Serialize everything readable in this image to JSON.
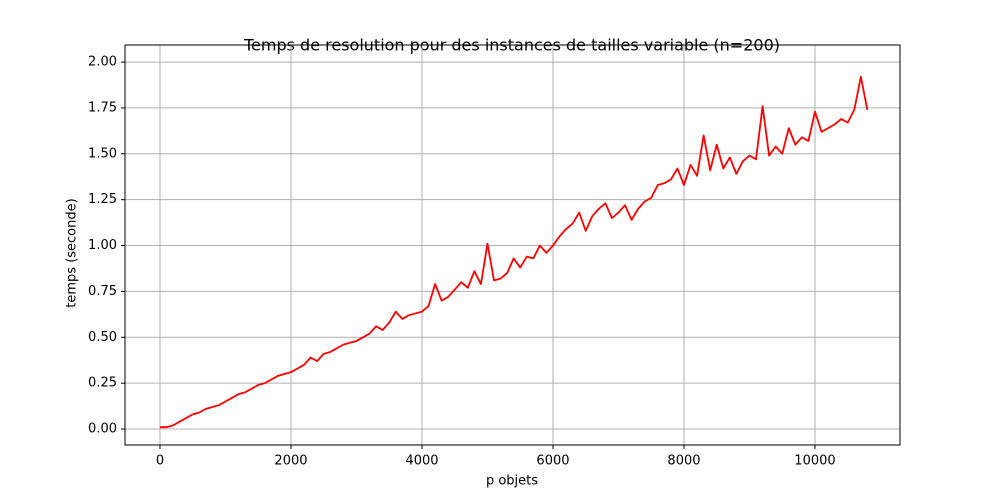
{
  "chart_data": {
    "type": "line",
    "title": "Temps de resolution pour des instances de tailles variable (n=200)",
    "xlabel": "p objets",
    "ylabel": "temps (seconde)",
    "x": [
      0,
      100,
      200,
      300,
      400,
      500,
      600,
      700,
      800,
      900,
      1000,
      1100,
      1200,
      1300,
      1400,
      1500,
      1600,
      1700,
      1800,
      1900,
      2000,
      2100,
      2200,
      2300,
      2400,
      2500,
      2600,
      2700,
      2800,
      2900,
      3000,
      3100,
      3200,
      3300,
      3400,
      3500,
      3600,
      3700,
      3800,
      3900,
      4000,
      4100,
      4200,
      4300,
      4400,
      4500,
      4600,
      4700,
      4800,
      4900,
      5000,
      5100,
      5200,
      5300,
      5400,
      5500,
      5600,
      5700,
      5800,
      5900,
      6000,
      6100,
      6200,
      6300,
      6400,
      6500,
      6600,
      6700,
      6800,
      6900,
      7000,
      7100,
      7200,
      7300,
      7400,
      7500,
      7600,
      7700,
      7800,
      7900,
      8000,
      8100,
      8200,
      8300,
      8400,
      8500,
      8600,
      8700,
      8800,
      8900,
      9000,
      9100,
      9200,
      9300,
      9400,
      9500,
      9600,
      9700,
      9800,
      9900,
      10000,
      10100,
      10200,
      10300,
      10400,
      10500,
      10600,
      10700,
      10800
    ],
    "series": [
      {
        "name": "temps",
        "color": "#ff0000",
        "values": [
          0.01,
          0.01,
          0.02,
          0.04,
          0.06,
          0.08,
          0.09,
          0.11,
          0.12,
          0.13,
          0.15,
          0.17,
          0.19,
          0.2,
          0.22,
          0.24,
          0.25,
          0.27,
          0.29,
          0.3,
          0.31,
          0.33,
          0.35,
          0.39,
          0.37,
          0.41,
          0.42,
          0.44,
          0.46,
          0.47,
          0.48,
          0.5,
          0.52,
          0.56,
          0.54,
          0.58,
          0.64,
          0.6,
          0.62,
          0.63,
          0.64,
          0.67,
          0.79,
          0.7,
          0.72,
          0.76,
          0.8,
          0.77,
          0.86,
          0.79,
          1.01,
          0.81,
          0.82,
          0.85,
          0.93,
          0.88,
          0.94,
          0.93,
          1.0,
          0.96,
          1.0,
          1.05,
          1.09,
          1.12,
          1.18,
          1.08,
          1.16,
          1.2,
          1.23,
          1.15,
          1.18,
          1.22,
          1.14,
          1.2,
          1.24,
          1.26,
          1.33,
          1.34,
          1.36,
          1.42,
          1.33,
          1.44,
          1.38,
          1.6,
          1.41,
          1.55,
          1.42,
          1.48,
          1.39,
          1.46,
          1.49,
          1.47,
          1.76,
          1.49,
          1.54,
          1.5,
          1.64,
          1.55,
          1.59,
          1.57,
          1.73,
          1.62,
          1.64,
          1.66,
          1.69,
          1.67,
          1.74,
          1.92,
          1.74
        ]
      }
    ],
    "xlim": [
      -534,
      11298
    ],
    "ylim": [
      -0.087,
      2.093
    ],
    "xticks": [
      0,
      2000,
      4000,
      6000,
      8000,
      10000
    ],
    "yticks": [
      {
        "value": 0,
        "label": "0.00"
      },
      {
        "value": 0.25,
        "label": "0.25"
      },
      {
        "value": 0.5,
        "label": "0.50"
      },
      {
        "value": 0.75,
        "label": "0.75"
      },
      {
        "value": 1,
        "label": "1.00"
      },
      {
        "value": 1.25,
        "label": "1.25"
      },
      {
        "value": 1.5,
        "label": "1.50"
      },
      {
        "value": 1.75,
        "label": "1.75"
      },
      {
        "value": 2,
        "label": "2.00"
      }
    ],
    "grid": true
  }
}
